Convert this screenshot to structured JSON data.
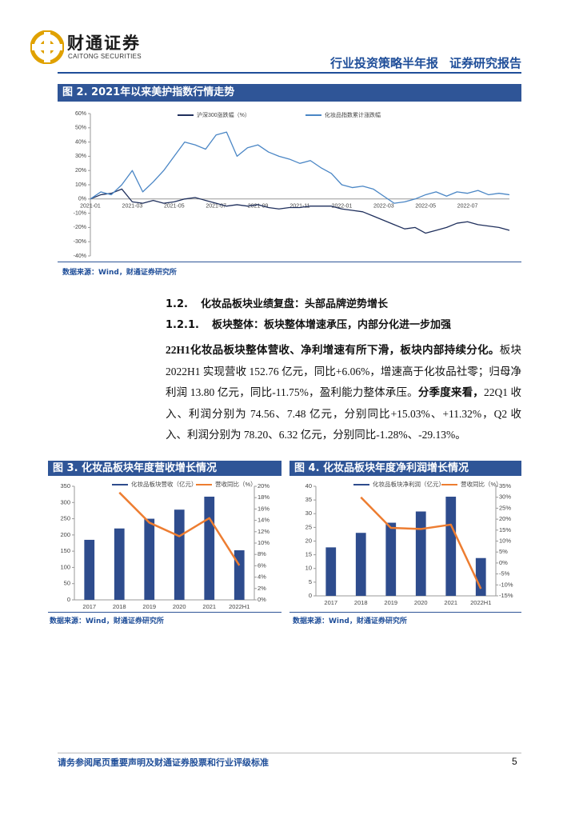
{
  "header": {
    "logo_cn": "财通证券",
    "logo_en": "CAITONG SECURITIES",
    "report_type": "行业投资策略半年报",
    "report_label": "证券研究报告"
  },
  "chart_data": [
    {
      "type": "line",
      "title": "图 2. 2021年以来美护指数行情走势",
      "source": "数据来源：Wind，财通证券研究所",
      "categories": [
        "2021-01",
        null,
        null,
        null,
        "2021-03",
        null,
        null,
        null,
        "2021-05",
        null,
        null,
        null,
        "2021-07",
        null,
        null,
        null,
        "2021-09",
        null,
        null,
        null,
        "2021-11",
        null,
        null,
        null,
        "2022-01",
        null,
        null,
        null,
        "2022-03",
        null,
        null,
        null,
        "2022-05",
        null,
        null,
        null,
        "2022-07",
        null,
        null,
        null,
        null
      ],
      "series": [
        {
          "name": "沪深300涨跌幅（%）",
          "color": "#1f2f5c",
          "values": [
            0,
            3,
            4,
            7,
            -2,
            -3,
            -1,
            -3,
            -2,
            0,
            1,
            -1,
            -3,
            -5,
            -4,
            -5,
            -4,
            -6,
            -7,
            -6,
            -6,
            -5,
            -5,
            -5,
            -7,
            -8,
            -9,
            -12,
            -15,
            -18,
            -21,
            -20,
            -24,
            -22,
            -20,
            -17,
            -16,
            -18,
            -19,
            -20,
            -22
          ]
        },
        {
          "name": "化妆品指数累计涨跌幅",
          "color": "#4a86c5",
          "values": [
            0,
            5,
            3,
            10,
            20,
            5,
            12,
            20,
            30,
            40,
            38,
            35,
            45,
            47,
            30,
            36,
            38,
            33,
            30,
            28,
            25,
            27,
            22,
            18,
            10,
            8,
            9,
            7,
            2,
            -3,
            -2,
            0,
            3,
            5,
            2,
            5,
            4,
            6,
            3,
            4,
            3
          ]
        }
      ],
      "ylim": [
        -40,
        60
      ],
      "yticks": [
        {
          "value": -40,
          "label": "-40%"
        },
        {
          "value": -30,
          "label": "-30%"
        },
        {
          "value": -20,
          "label": "-20%"
        },
        {
          "value": -10,
          "label": "-10%"
        },
        {
          "value": 0,
          "label": "0%"
        },
        {
          "value": 10,
          "label": "10%"
        },
        {
          "value": 20,
          "label": "20%"
        },
        {
          "value": 30,
          "label": "30%"
        },
        {
          "value": 40,
          "label": "40%"
        },
        {
          "value": 50,
          "label": "50%"
        },
        {
          "value": 60,
          "label": "60%"
        }
      ]
    },
    {
      "type": "bar",
      "title": "图 3. 化妆品板块年度营收增长情况",
      "source": "数据来源：Wind，财通证券研究所",
      "categories": [
        "2017",
        "2018",
        "2019",
        "2020",
        "2021",
        "2022H1"
      ],
      "series": [
        {
          "name": "化妆品板块营收（亿元）",
          "color": "#2e4c8d",
          "values": [
            185,
            220,
            250,
            278,
            318,
            152.76
          ]
        },
        {
          "name": "营收同比（%）",
          "color": "#ed7d31",
          "type": "line",
          "axis": "y2",
          "values": [
            null,
            18.9,
            13.6,
            11.2,
            14.4,
            6.06
          ]
        }
      ],
      "ylim": [
        0,
        350
      ],
      "yticks": [
        0,
        50,
        100,
        150,
        200,
        250,
        300,
        350
      ],
      "y2lim": [
        0,
        20
      ],
      "y2ticks": [
        {
          "value": 0,
          "label": "0%"
        },
        {
          "value": 2,
          "label": "2%"
        },
        {
          "value": 4,
          "label": "4%"
        },
        {
          "value": 6,
          "label": "6%"
        },
        {
          "value": 8,
          "label": "8%"
        },
        {
          "value": 10,
          "label": "10%"
        },
        {
          "value": 12,
          "label": "12%"
        },
        {
          "value": 14,
          "label": "14%"
        },
        {
          "value": 16,
          "label": "16%"
        },
        {
          "value": 18,
          "label": "18%"
        },
        {
          "value": 20,
          "label": "20%"
        }
      ]
    },
    {
      "type": "bar",
      "title": "图 4. 化妆品板块年度净利润增长情况",
      "source": "数据来源：Wind，财通证券研究所",
      "categories": [
        "2017",
        "2018",
        "2019",
        "2020",
        "2021",
        "2022H1"
      ],
      "series": [
        {
          "name": "化妆品板块净利润（亿元）",
          "color": "#2e4c8d",
          "values": [
            17.7,
            23,
            26.7,
            30.8,
            36.2,
            13.8
          ]
        },
        {
          "name": "营收同比（%）",
          "color": "#ed7d31",
          "type": "line",
          "axis": "y2",
          "values": [
            null,
            30,
            16,
            15.5,
            17.5,
            -11.75
          ]
        }
      ],
      "ylim": [
        0,
        40
      ],
      "yticks": [
        0,
        5,
        10,
        15,
        20,
        25,
        30,
        35,
        40
      ],
      "y2lim": [
        -15,
        35
      ],
      "y2ticks": [
        {
          "value": -15,
          "label": "-15%"
        },
        {
          "value": -10,
          "label": "-10%"
        },
        {
          "value": -5,
          "label": "-5%"
        },
        {
          "value": 0,
          "label": "0%"
        },
        {
          "value": 5,
          "label": "5%"
        },
        {
          "value": 10,
          "label": "10%"
        },
        {
          "value": 15,
          "label": "15%"
        },
        {
          "value": 20,
          "label": "20%"
        },
        {
          "value": 25,
          "label": "25%"
        },
        {
          "value": 30,
          "label": "30%"
        },
        {
          "value": 35,
          "label": "35%"
        }
      ]
    }
  ],
  "body": {
    "heading1": {
      "number": "1.2.",
      "text": "化妆品板块业绩复盘：头部品牌逆势增长"
    },
    "heading2": {
      "number": "1.2.1.",
      "text": "板块整体：板块整体增速承压，内部分化进一步加强"
    },
    "paragraph": [
      {
        "text": "22H1化妆品板块整体营收、净利增速有所下滑，板块内部持续分化。",
        "bold": true
      },
      {
        "text": "板块 2022H1 实现营收 152.76 亿元，同比+6.06%，增速高于化妆品社零；归母净利润 13.80 亿元，同比-11.75%，盈利能力整体承压。",
        "bold": false
      },
      {
        "text": "分季度来看，",
        "bold": true
      },
      {
        "text": "22Q1 收入、利润分别为 74.56、7.48 亿元，分别同比+15.03%、+11.32%，Q2 收入、利润分别为 78.20、6.32 亿元，分别同比-1.28%、-29.13%。",
        "bold": false
      }
    ]
  },
  "footer": {
    "disclaimer": "请务参阅尾页重要声明及财通证券股票和行业评级标准",
    "page_number": 5
  }
}
